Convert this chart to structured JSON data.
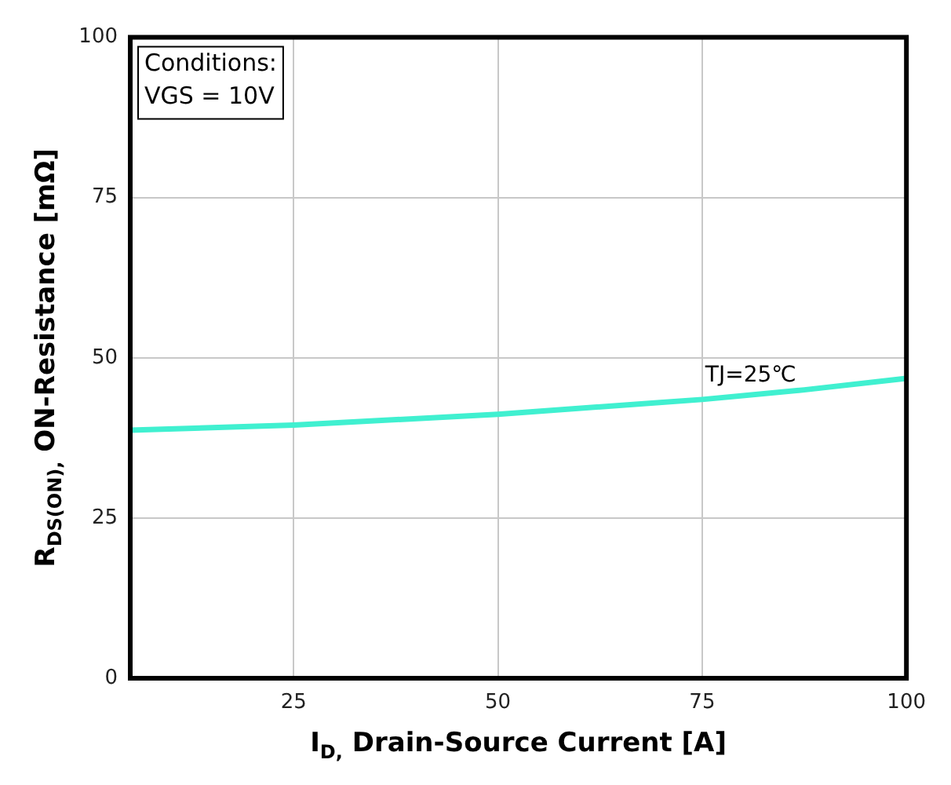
{
  "chart_data": {
    "type": "line",
    "xlabel": "I$_{D,}$ Drain-Source Current [A]",
    "ylabel": "R$_{DS(ON),}$ ON-Resistance [mΩ]",
    "x": [
      5,
      25,
      50,
      75,
      87.5,
      100
    ],
    "series": [
      {
        "name": "TJ=25℃",
        "color": "#40f0d0",
        "values": [
          38.7,
          39.5,
          41.2,
          43.5,
          45.0,
          46.8
        ]
      }
    ],
    "xlim": [
      5,
      100
    ],
    "xticks": [
      25,
      50,
      75,
      100
    ],
    "ylim": [
      0,
      100
    ],
    "yticks": [
      0,
      25,
      50,
      75,
      100
    ],
    "annotations": [
      "Conditions:",
      "VGS = 10V"
    ],
    "grid": true,
    "legend": false,
    "marker": "none",
    "line_style": "solid"
  }
}
